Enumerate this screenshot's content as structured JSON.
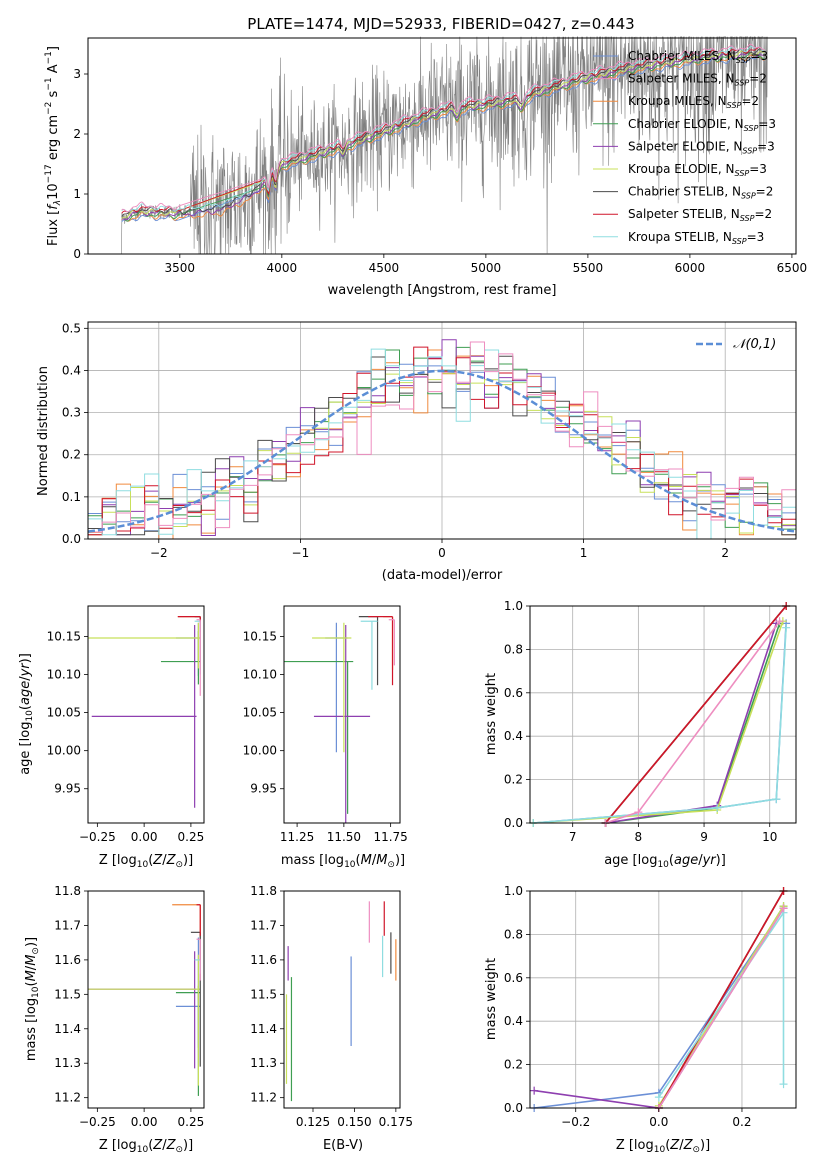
{
  "figure_title": "PLATE=1474, MJD=52933, FIBERID=0427, z=0.443",
  "colors": {
    "data_spectrum": "#808080",
    "normal_dashed": "#5b8ed6",
    "models": [
      "#6b8fd6",
      "#f08a3e",
      "#3f9e52",
      "#8e3fb0",
      "#c8e05a",
      "#4b4b4b",
      "#d0152a",
      "#8fdde0",
      "#ee8ec0"
    ]
  },
  "legend_models": [
    "Chabrier MILES, N_SSP=3",
    "Salpeter MILES, N_SSP=2",
    "Kroupa MILES, N_SSP=2",
    "Chabrier ELODIE, N_SSP=3",
    "Salpeter ELODIE, N_SSP=3",
    "Kroupa ELODIE, N_SSP=3",
    "Chabrier STELIB, N_SSP=2",
    "Salpeter STELIB, N_SSP=2",
    "Kroupa STELIB, N_SSP=3"
  ],
  "chart_data": [
    {
      "id": "spectrum",
      "type": "line",
      "xlabel": "wavelength [Angstrom, rest frame]",
      "ylabel": "Flux [fλ 10^-17 erg cm^-2 s^-1 A^-1]",
      "xlim": [
        3050,
        6520
      ],
      "ylim": [
        0,
        3.6
      ],
      "xticks": [
        3500,
        4000,
        4500,
        5000,
        5500,
        6000,
        6500
      ],
      "yticks": [
        0,
        1,
        2,
        3
      ],
      "grid": false,
      "legend_position": "top-right",
      "data_range": [
        3210,
        6380
      ],
      "model_continuum": {
        "x": [
          3210,
          3300,
          3500,
          3700,
          3850,
          3950,
          4000,
          4100,
          4300,
          4500,
          4700,
          4850,
          5000,
          5100,
          5300,
          5500,
          5700,
          5900,
          6100,
          6300,
          6380
        ],
        "y": [
          0.6,
          0.72,
          0.68,
          0.75,
          1.0,
          1.3,
          1.5,
          1.6,
          1.8,
          2.05,
          2.3,
          2.45,
          2.5,
          2.55,
          2.75,
          2.95,
          3.1,
          3.2,
          3.3,
          3.35,
          3.35
        ]
      }
    },
    {
      "id": "residuals",
      "type": "step",
      "xlabel": "(data-model)/error",
      "ylabel": "Normed distribution",
      "xlim": [
        -2.5,
        2.5
      ],
      "ylim": [
        0,
        0.515
      ],
      "xticks": [
        -2,
        -1,
        0,
        1,
        2
      ],
      "yticks": [
        0.0,
        0.1,
        0.2,
        0.3,
        0.4,
        0.5
      ],
      "grid": true,
      "legend": "𝒩(0,1)",
      "legend_position": "top-right",
      "bins": [
        -2.5,
        2.5,
        50
      ]
    },
    {
      "id": "age_vs_Z",
      "type": "errorbar",
      "xlabel": "Z [log10(Z/Z⊙)]",
      "ylabel": "age [log10(age/yr)]",
      "xlim": [
        -0.3,
        0.32
      ],
      "ylim": [
        9.905,
        10.19
      ],
      "xticks": [
        -0.25,
        0.0,
        0.25
      ],
      "xticklabels": [
        "−0.25",
        "0.00",
        "0.25"
      ],
      "yticks": [
        9.95,
        10.0,
        10.05,
        10.1,
        10.15
      ],
      "grid": false,
      "points": [
        {
          "x": 0.29,
          "y": 10.148,
          "xerr": [
            0.12,
            0.01
          ],
          "yerr": [
            0.05,
            0.02
          ]
        },
        {
          "x": 0.3,
          "y": 10.176,
          "xerr": [
            0.12,
            0.0
          ],
          "yerr": [
            0.02,
            0.0
          ]
        },
        {
          "x": 0.29,
          "y": 10.117,
          "xerr": [
            0.2,
            0.01
          ],
          "yerr": [
            0.03,
            0.04
          ]
        },
        {
          "x": 0.27,
          "y": 10.045,
          "xerr": [
            0.55,
            0.01
          ],
          "yerr": [
            0.12,
            0.12
          ]
        },
        {
          "x": 0.29,
          "y": 10.148,
          "xerr": [
            0.59,
            0.01
          ],
          "yerr": [
            0.04,
            0.02
          ]
        },
        {
          "x": 0.3,
          "y": 10.176,
          "xerr": [
            0.03,
            0.0
          ],
          "yerr": [
            0.02,
            0.0
          ]
        },
        {
          "x": 0.3,
          "y": 10.176,
          "xerr": [
            0.12,
            0.0
          ],
          "yerr": [
            0.07,
            0.0
          ]
        },
        {
          "x": 0.3,
          "y": 10.17,
          "xerr": [
            0.03,
            0.0
          ],
          "yerr": [
            0.07,
            0.0
          ]
        },
        {
          "x": 0.3,
          "y": 10.172,
          "xerr": [
            0.02,
            0.0
          ],
          "yerr": [
            0.1,
            0.0
          ]
        }
      ]
    },
    {
      "id": "age_vs_mass",
      "type": "errorbar",
      "xlabel": "mass [log10(M/M⊙)]",
      "ylabel": "",
      "xlim": [
        11.18,
        11.8
      ],
      "ylim": [
        9.905,
        10.19
      ],
      "xticks": [
        11.25,
        11.5,
        11.75
      ],
      "yticks": [
        9.95,
        10.0,
        10.05,
        10.1,
        10.15
      ],
      "grid": false,
      "points": [
        {
          "x": 11.46,
          "y": 10.148,
          "xerr": [
            0.06,
            0.06
          ],
          "yerr": [
            0.15,
            0.02
          ]
        },
        {
          "x": 11.76,
          "y": 10.176,
          "xerr": [
            0.05,
            0.0
          ],
          "yerr": [
            0.07,
            0.0
          ]
        },
        {
          "x": 11.52,
          "y": 10.117,
          "xerr": [
            0.36,
            0.03
          ],
          "yerr": [
            0.2,
            0.0
          ]
        },
        {
          "x": 11.51,
          "y": 10.045,
          "xerr": [
            0.17,
            0.13
          ],
          "yerr": [
            0.14,
            0.12
          ]
        },
        {
          "x": 11.5,
          "y": 10.148,
          "xerr": [
            0.17,
            0.04
          ],
          "yerr": [
            0.15,
            0.02
          ]
        },
        {
          "x": 11.68,
          "y": 10.176,
          "xerr": [
            0.1,
            0.0
          ],
          "yerr": [
            0.09,
            0.0
          ]
        },
        {
          "x": 11.76,
          "y": 10.176,
          "xerr": [
            0.13,
            0.0
          ],
          "yerr": [
            0.09,
            0.0
          ]
        },
        {
          "x": 11.65,
          "y": 10.17,
          "xerr": [
            0.06,
            0.03
          ],
          "yerr": [
            0.09,
            0.0
          ]
        },
        {
          "x": 11.77,
          "y": 10.172,
          "xerr": [
            0.03,
            0.0
          ],
          "yerr": [
            0.06,
            0.0
          ]
        }
      ]
    },
    {
      "id": "massweight_vs_age",
      "type": "line",
      "xlabel": "age [log10(age/yr)]",
      "ylabel": "mass weight",
      "xlim": [
        6.35,
        10.4
      ],
      "ylim": [
        0,
        1.0
      ],
      "xticks": [
        7,
        8,
        9,
        10
      ],
      "yticks": [
        0.0,
        0.2,
        0.4,
        0.6,
        0.8,
        1.0
      ],
      "grid": true
    },
    {
      "id": "mass_vs_Z",
      "type": "errorbar",
      "xlabel": "Z [log10(Z/Z⊙)]",
      "ylabel": "mass [log10(M/M⊙)]",
      "xlim": [
        -0.3,
        0.32
      ],
      "ylim": [
        11.17,
        11.8
      ],
      "xticks": [
        -0.25,
        0.0,
        0.25
      ],
      "xticklabels": [
        "−0.25",
        "0.00",
        "0.25"
      ],
      "yticks": [
        11.2,
        11.3,
        11.4,
        11.5,
        11.6,
        11.7,
        11.8
      ],
      "grid": false,
      "points": [
        {
          "x": 0.29,
          "y": 11.465,
          "xerr": [
            0.12,
            0.01
          ],
          "yerr": [
            0.12,
            0.2
          ]
        },
        {
          "x": 0.3,
          "y": 11.76,
          "xerr": [
            0.15,
            0.0
          ],
          "yerr": [
            0.1,
            0.0
          ]
        },
        {
          "x": 0.29,
          "y": 11.505,
          "xerr": [
            0.12,
            0.01
          ],
          "yerr": [
            0.3,
            0.02
          ]
        },
        {
          "x": 0.27,
          "y": 11.515,
          "xerr": [
            0.57,
            0.01
          ],
          "yerr": [
            0.23,
            0.11
          ]
        },
        {
          "x": 0.29,
          "y": 11.515,
          "xerr": [
            0.59,
            0.01
          ],
          "yerr": [
            0.28,
            0.1
          ]
        },
        {
          "x": 0.3,
          "y": 11.68,
          "xerr": [
            0.05,
            0.0
          ],
          "yerr": [
            0.39,
            0.0
          ]
        },
        {
          "x": 0.3,
          "y": 11.76,
          "xerr": [
            0.02,
            0.0
          ],
          "yerr": [
            0.09,
            0.0
          ]
        },
        {
          "x": 0.3,
          "y": 11.6,
          "xerr": [
            0.03,
            0.0
          ],
          "yerr": [
            0.04,
            0.0
          ]
        },
        {
          "x": 0.3,
          "y": 11.66,
          "xerr": [
            0.02,
            0.0
          ],
          "yerr": [
            0.12,
            0.0
          ]
        }
      ]
    },
    {
      "id": "mass_vs_ebv",
      "type": "errorbar",
      "xlabel": "E(B-V)",
      "ylabel": "",
      "xlim": [
        0.1075,
        0.1775
      ],
      "ylim": [
        11.17,
        11.8
      ],
      "xticks": [
        0.125,
        0.15,
        0.175
      ],
      "yticks": [
        11.2,
        11.3,
        11.4,
        11.5,
        11.6,
        11.7,
        11.8
      ],
      "grid": false,
      "points": [
        {
          "x": 0.148,
          "y": 11.48,
          "yerr": [
            0.13,
            0.13
          ]
        },
        {
          "x": 0.175,
          "y": 11.6,
          "yerr": [
            0.06,
            0.06
          ]
        },
        {
          "x": 0.112,
          "y": 11.37,
          "yerr": [
            0.18,
            0.18
          ]
        },
        {
          "x": 0.11,
          "y": 11.59,
          "yerr": [
            0.05,
            0.05
          ]
        },
        {
          "x": 0.109,
          "y": 11.37,
          "yerr": [
            0.13,
            0.13
          ]
        },
        {
          "x": 0.172,
          "y": 11.62,
          "yerr": [
            0.06,
            0.06
          ]
        },
        {
          "x": 0.168,
          "y": 11.72,
          "yerr": [
            0.05,
            0.05
          ]
        },
        {
          "x": 0.167,
          "y": 11.61,
          "yerr": [
            0.06,
            0.06
          ]
        },
        {
          "x": 0.159,
          "y": 11.71,
          "yerr": [
            0.06,
            0.06
          ]
        }
      ]
    },
    {
      "id": "massweight_vs_Z",
      "type": "line",
      "xlabel": "Z [log10(Z/Z⊙)]",
      "ylabel": "mass weight",
      "xlim": [
        -0.31,
        0.33
      ],
      "ylim": [
        0,
        1.0
      ],
      "xticks": [
        -0.2,
        0.0,
        0.2
      ],
      "xticklabels": [
        "−0.2",
        "0.0",
        "0.2"
      ],
      "yticks": [
        0.0,
        0.2,
        0.4,
        0.6,
        0.8,
        1.0
      ],
      "grid": true
    }
  ]
}
